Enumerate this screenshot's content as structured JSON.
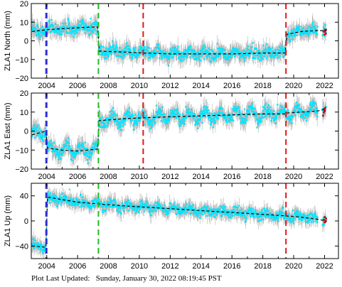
{
  "footer": {
    "label": "Plot Last Updated:",
    "timestamp": "Sunday, January 30, 2022 08:19:45 PST"
  },
  "colors": {
    "data": "#00e5ff",
    "error_bar": "#b4b4b4",
    "model": "#000000",
    "outlier": "#cc0000",
    "event_purple": "#6a2bd6",
    "event_blue": "#1f2fd6",
    "event_green": "#22bb22",
    "event_red": "#e01818"
  },
  "chart_data": [
    {
      "type": "scatter",
      "ylabel": "ZLA1 North (mm)",
      "xlim": [
        2003.0,
        2022.9
      ],
      "ylim": [
        -20,
        20
      ],
      "yticks": [
        -20,
        -10,
        0,
        10,
        20
      ],
      "xticks": [
        2004,
        2006,
        2008,
        2010,
        2012,
        2014,
        2016,
        2018,
        2020,
        2022
      ],
      "grid": false,
      "events": [
        {
          "x": 2003.95,
          "color": "purple"
        },
        {
          "x": 2004.0,
          "color": "blue"
        },
        {
          "x": 2007.35,
          "color": "green"
        },
        {
          "x": 2010.25,
          "color": "red"
        },
        {
          "x": 2019.5,
          "color": "red"
        }
      ],
      "model": [
        [
          2003.05,
          5.0
        ],
        [
          2004.0,
          6.0
        ],
        [
          2005.0,
          6.5
        ],
        [
          2006.0,
          7.0
        ],
        [
          2007.3,
          7.5
        ],
        [
          2007.4,
          -5.5
        ],
        [
          2009.0,
          -6.0
        ],
        [
          2010.3,
          -6.5
        ],
        [
          2012.0,
          -7.0
        ],
        [
          2014.0,
          -7.0
        ],
        [
          2016.0,
          -7.0
        ],
        [
          2018.0,
          -6.5
        ],
        [
          2019.45,
          -6.5
        ],
        [
          2019.55,
          3.5
        ],
        [
          2020.5,
          5.0
        ],
        [
          2021.5,
          5.5
        ],
        [
          2022.1,
          5.5
        ]
      ]
    },
    {
      "type": "scatter",
      "ylabel": "ZLA1 East (mm)",
      "xlim": [
        2003.0,
        2022.9
      ],
      "ylim": [
        -20,
        20
      ],
      "yticks": [
        -20,
        -10,
        0,
        10,
        20
      ],
      "xticks": [
        2004,
        2006,
        2008,
        2010,
        2012,
        2014,
        2016,
        2018,
        2020,
        2022
      ],
      "grid": false,
      "events": [
        {
          "x": 2003.95,
          "color": "purple"
        },
        {
          "x": 2004.0,
          "color": "blue"
        },
        {
          "x": 2007.35,
          "color": "green"
        },
        {
          "x": 2010.25,
          "color": "red"
        },
        {
          "x": 2019.5,
          "color": "red"
        }
      ],
      "model": [
        [
          2003.05,
          -2.0
        ],
        [
          2003.95,
          0.0
        ],
        [
          2004.05,
          -9.0
        ],
        [
          2005.0,
          -10.0
        ],
        [
          2006.0,
          -10.5
        ],
        [
          2007.3,
          -9.5
        ],
        [
          2007.4,
          5.5
        ],
        [
          2009.0,
          6.5
        ],
        [
          2010.3,
          7.0
        ],
        [
          2012.0,
          7.5
        ],
        [
          2014.0,
          8.0
        ],
        [
          2016.0,
          8.5
        ],
        [
          2018.0,
          9.0
        ],
        [
          2019.45,
          9.0
        ],
        [
          2019.55,
          9.5
        ],
        [
          2020.5,
          10.0
        ],
        [
          2021.5,
          10.5
        ],
        [
          2022.1,
          11.5
        ]
      ]
    },
    {
      "type": "scatter",
      "ylabel": "ZLA1 Up (mm)",
      "xlim": [
        2003.0,
        2022.9
      ],
      "ylim": [
        -60,
        60
      ],
      "yticks": [
        -40,
        0,
        40
      ],
      "xticks": [
        2004,
        2006,
        2008,
        2010,
        2012,
        2014,
        2016,
        2018,
        2020,
        2022
      ],
      "grid": false,
      "events": [
        {
          "x": 2003.95,
          "color": "purple"
        },
        {
          "x": 2004.0,
          "color": "blue"
        },
        {
          "x": 2007.35,
          "color": "green"
        },
        {
          "x": 2019.5,
          "color": "red"
        }
      ],
      "model": [
        [
          2003.05,
          -40.0
        ],
        [
          2003.95,
          -42.0
        ],
        [
          2004.05,
          38.0
        ],
        [
          2005.0,
          34.0
        ],
        [
          2006.0,
          30.0
        ],
        [
          2007.35,
          27.0
        ],
        [
          2009.0,
          24.0
        ],
        [
          2011.0,
          21.0
        ],
        [
          2013.0,
          18.0
        ],
        [
          2015.0,
          15.0
        ],
        [
          2017.0,
          12.0
        ],
        [
          2019.0,
          9.0
        ],
        [
          2019.5,
          8.0
        ],
        [
          2020.5,
          6.0
        ],
        [
          2021.5,
          3.0
        ],
        [
          2022.1,
          0.0
        ]
      ]
    }
  ]
}
